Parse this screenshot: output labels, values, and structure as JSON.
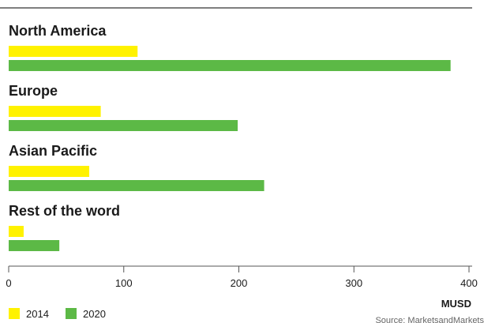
{
  "chart_data": {
    "type": "bar",
    "orientation": "horizontal",
    "title": "",
    "categories": [
      "North America",
      "Europe",
      "Asian Pacific",
      "Rest of the word"
    ],
    "series": [
      {
        "name": "2014",
        "color": "#fff200",
        "values": [
          112,
          80,
          70,
          13
        ]
      },
      {
        "name": "2020",
        "color": "#5cb946",
        "values": [
          384,
          199,
          222,
          44
        ]
      }
    ],
    "xlim": [
      0,
      400
    ],
    "xticks": [
      0,
      100,
      200,
      300,
      400
    ],
    "xlabel": "MUSD",
    "legend_position": "bottom-left",
    "grid": false,
    "source": "Source: MarketsandMarkets"
  }
}
